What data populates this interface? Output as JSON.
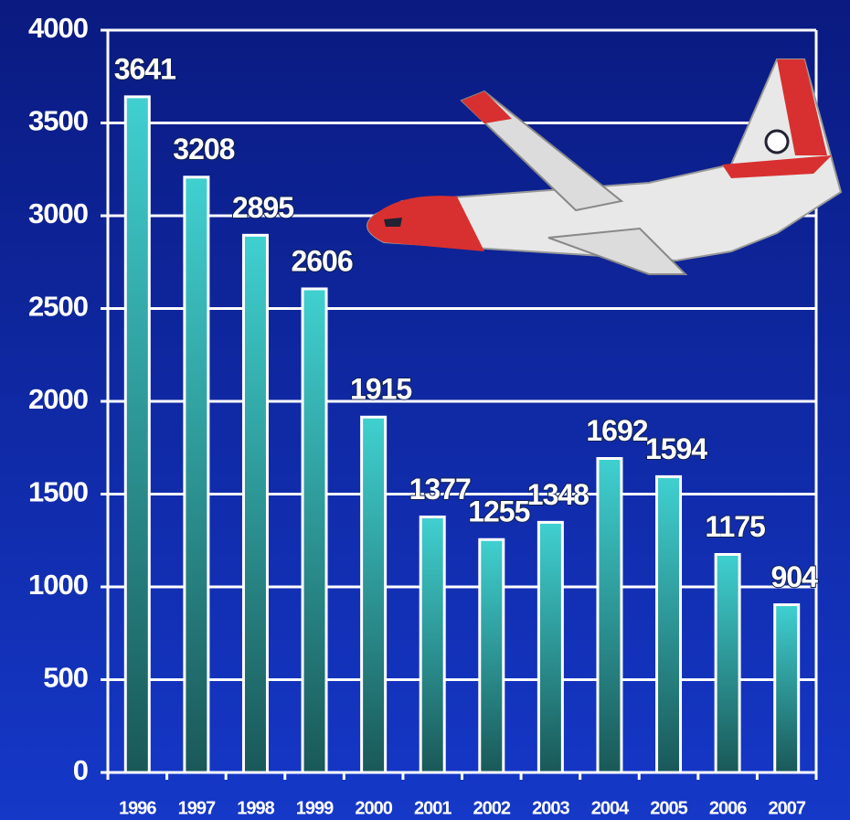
{
  "chart_data": {
    "type": "bar",
    "categories": [
      "1996",
      "1997",
      "1998",
      "1999",
      "2000",
      "2001",
      "2002",
      "2003",
      "2004",
      "2005",
      "2006",
      "2007"
    ],
    "values": [
      3641,
      3208,
      2895,
      2606,
      1915,
      1377,
      1255,
      1348,
      1692,
      1594,
      1175,
      904
    ],
    "ylim": [
      0,
      4000
    ],
    "yticks": [
      0,
      500,
      1000,
      1500,
      2000,
      2500,
      3000,
      3500,
      4000
    ],
    "grid": true,
    "color": "#40d0d0"
  }
}
